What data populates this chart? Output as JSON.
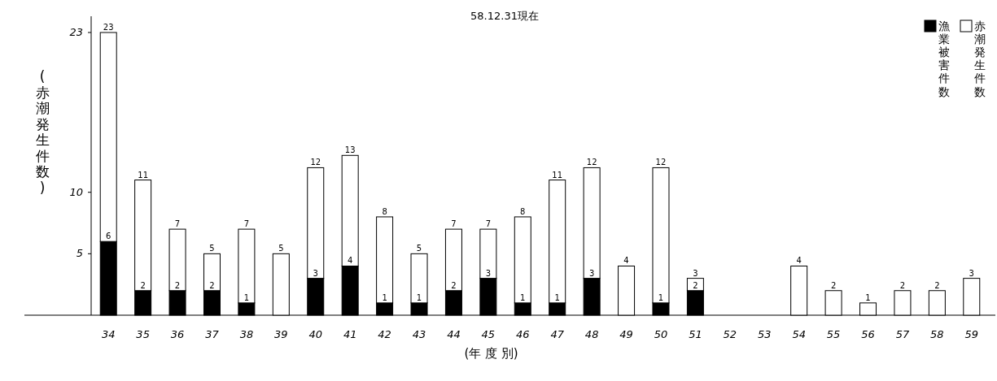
{
  "chart_data": {
    "type": "bar",
    "title": "58.12.31現在",
    "xlabel": "(年 度 別)",
    "ylabel": "(赤潮発生件数)",
    "categories": [
      "34",
      "35",
      "36",
      "37",
      "38",
      "39",
      "40",
      "41",
      "42",
      "43",
      "44",
      "45",
      "46",
      "47",
      "48",
      "49",
      "50",
      "51",
      "52",
      "53",
      "54",
      "55",
      "56",
      "57",
      "58",
      "59"
    ],
    "stacked": true,
    "legend": "top right",
    "ylim": [
      0,
      23
    ],
    "yticks": [
      5,
      10,
      23
    ],
    "series": [
      {
        "name": "漁業被害件数",
        "color": "#000000",
        "values": [
          6,
          2,
          2,
          2,
          1,
          0,
          3,
          4,
          1,
          1,
          2,
          3,
          1,
          1,
          3,
          0,
          1,
          2,
          0,
          0,
          0,
          0,
          0,
          0,
          0,
          0
        ],
        "value_labels": [
          "6",
          "2",
          "2",
          "2",
          "1",
          null,
          "3",
          "4",
          "1",
          "1",
          "2",
          "3",
          "1",
          "1",
          "3",
          null,
          "1",
          "2",
          null,
          null,
          null,
          null,
          null,
          null,
          null,
          null
        ]
      },
      {
        "name": "赤潮発生件数",
        "color": "#ffffff",
        "values": [
          17,
          9,
          5,
          3,
          6,
          5,
          9,
          9,
          7,
          4,
          5,
          4,
          7,
          10,
          9,
          4,
          11,
          1,
          0,
          0,
          4,
          2,
          1,
          2,
          2,
          3
        ]
      }
    ],
    "totals": [
      "23",
      "11",
      "7",
      "5",
      "7",
      "5",
      "12",
      "13",
      "8",
      "5",
      "7",
      "7",
      "8",
      "11",
      "12",
      "4",
      "12",
      "3",
      null,
      null,
      "4",
      "2",
      "1",
      "2",
      "2",
      "3"
    ]
  }
}
